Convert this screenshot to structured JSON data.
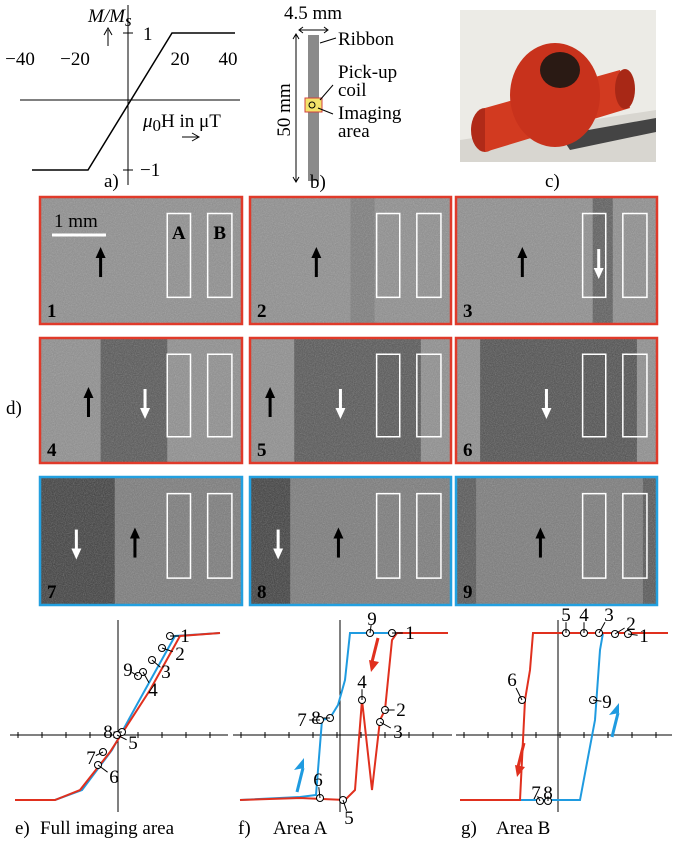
{
  "panel_a": {
    "y_label": {
      "main": "M/M",
      "sub": "s"
    },
    "x_ticks": [
      "−40",
      "−20",
      "20",
      "40"
    ],
    "y_ticks": [
      "1",
      "−1"
    ],
    "x_label": {
      "mu": "μ",
      "sub": "0",
      "rest": "H in μT"
    },
    "caption": "a)"
  },
  "panel_b": {
    "width": "4.5 mm",
    "length": "50 mm",
    "ribbon": "Ribbon",
    "coil": [
      "Pick-up",
      "coil"
    ],
    "imaging": [
      "Imaging",
      "area"
    ],
    "caption": "b)"
  },
  "panel_c": {
    "caption": "c)"
  },
  "panel_d": {
    "caption": "d)",
    "scale": "1 mm",
    "box_a": "A",
    "box_b": "B",
    "frames": [
      "1",
      "2",
      "3",
      "4",
      "5",
      "6",
      "7",
      "8",
      "9"
    ]
  },
  "plots": [
    {
      "caption": "e)",
      "title": "Full imaging area",
      "points": [
        {
          "label": "1",
          "color": "#e0301e"
        },
        {
          "label": "2",
          "color": "#e0301e"
        },
        {
          "label": "3",
          "color": "#e0301e"
        },
        {
          "label": "4",
          "color": "#e0301e"
        },
        {
          "label": "9",
          "color": "#1f9be0"
        },
        {
          "label": "8",
          "color": "#1f9be0"
        },
        {
          "label": "5",
          "color": "#e0301e"
        },
        {
          "label": "7",
          "color": "#1f9be0"
        },
        {
          "label": "6",
          "color": "#e0301e"
        }
      ]
    },
    {
      "caption": "f)",
      "title": "Area A",
      "points": [
        {
          "label": "9",
          "color": "#1f9be0"
        },
        {
          "label": "1",
          "color": "#e0301e"
        },
        {
          "label": "8",
          "color": "#1f9be0"
        },
        {
          "label": "4",
          "color": "#e0301e"
        },
        {
          "label": "7",
          "color": "#1f9be0"
        },
        {
          "label": "2",
          "color": "#e0301e"
        },
        {
          "label": "3",
          "color": "#e0301e"
        },
        {
          "label": "6",
          "color": "#e0301e"
        },
        {
          "label": "5",
          "color": "#e0301e"
        }
      ]
    },
    {
      "caption": "g)",
      "title": "Area B",
      "points": [
        {
          "label": "5",
          "color": "#e0301e"
        },
        {
          "label": "4",
          "color": "#e0301e"
        },
        {
          "label": "3",
          "color": "#e0301e"
        },
        {
          "label": "2",
          "color": "#e0301e"
        },
        {
          "label": "1",
          "color": "#e0301e"
        },
        {
          "label": "6",
          "color": "#e0301e"
        },
        {
          "label": "9",
          "color": "#1f9be0"
        },
        {
          "label": "7",
          "color": "#1f9be0"
        },
        {
          "label": "8",
          "color": "#1f9be0"
        }
      ]
    }
  ]
}
